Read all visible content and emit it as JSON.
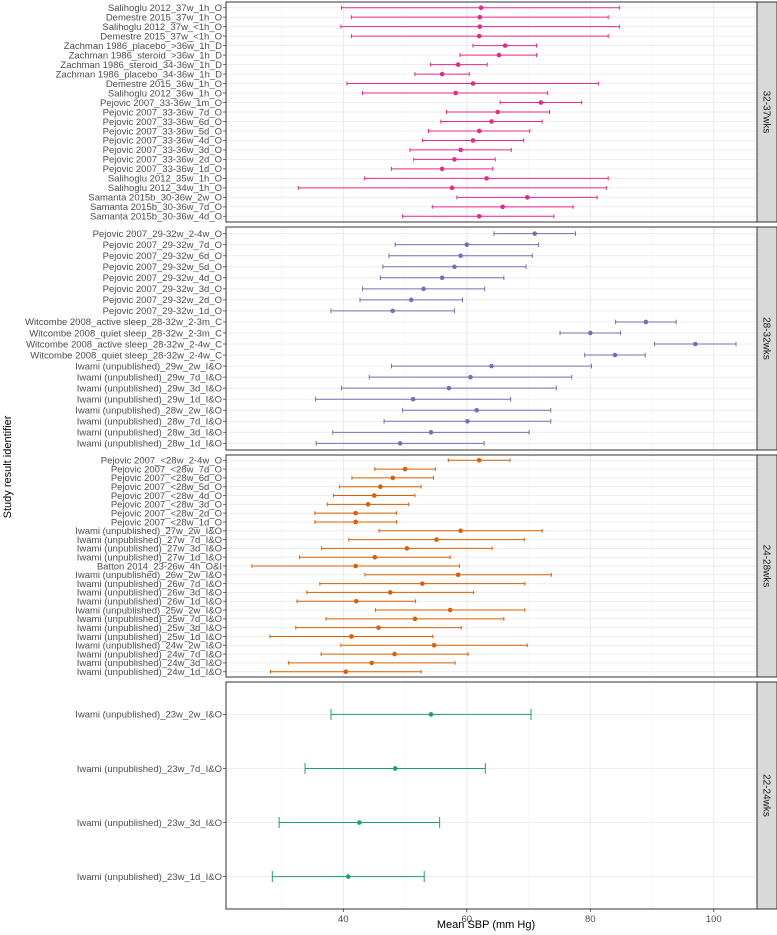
{
  "chart_data": {
    "type": "forest",
    "xlabel": "Mean SBP (mm Hg)",
    "ylabel": "Study result identifier",
    "xlim": [
      21,
      107
    ],
    "xticks": [
      40,
      60,
      80,
      100
    ],
    "colors": {
      "32-37wks": "#e7298a",
      "28-32wks": "#7570b3",
      "24-28wks": "#d95f02",
      "22-24wks": "#1b9e77"
    },
    "panels": [
      {
        "name": "32-37wks",
        "rows": [
          {
            "label": "Salihoglu 2012_37w_1h_O",
            "mean": 62.3,
            "lo": 39.7,
            "hi": 84.7
          },
          {
            "label": "Demestre 2015_37w_1h_O",
            "mean": 62.1,
            "lo": 41.3,
            "hi": 82.9
          },
          {
            "label": "Salihoglu 2012_37w_<1h_O",
            "mean": 62.1,
            "lo": 39.6,
            "hi": 84.7
          },
          {
            "label": "Demestre 2015_37w_<1h_O",
            "mean": 62.0,
            "lo": 41.3,
            "hi": 82.9
          },
          {
            "label": "Zachman 1986_placebo_>36w_1h_D",
            "mean": 66.2,
            "lo": 61.0,
            "hi": 71.3
          },
          {
            "label": "Zachman 1986_steroid_>36w_1h_D",
            "mean": 65.2,
            "lo": 58.9,
            "hi": 71.3
          },
          {
            "label": "Zachman 1986_steroid_34-36w_1h_D",
            "mean": 58.6,
            "lo": 54.1,
            "hi": 63.3
          },
          {
            "label": "Zachman 1986_placebo_34-36w_1h_D",
            "mean": 56.0,
            "lo": 51.6,
            "hi": 60.4
          },
          {
            "label": "Demestre 2015_36w_1h_O",
            "mean": 61.0,
            "lo": 40.6,
            "hi": 81.3
          },
          {
            "label": "Salihoglu 2012_36w_1h_O",
            "mean": 58.2,
            "lo": 43.1,
            "hi": 73.1
          },
          {
            "label": "Pejovic 2007_33-36w_1m_O",
            "mean": 72.0,
            "lo": 65.4,
            "hi": 78.6
          },
          {
            "label": "Pejovic 2007_33-36w_7d_O",
            "mean": 65.0,
            "lo": 56.7,
            "hi": 73.4
          },
          {
            "label": "Pejovic 2007_33-36w_6d_O",
            "mean": 64.0,
            "lo": 55.8,
            "hi": 72.2
          },
          {
            "label": "Pejovic 2007_33-36w_5d_O",
            "mean": 62.0,
            "lo": 53.8,
            "hi": 70.2
          },
          {
            "label": "Pejovic 2007_33-36w_4d_O",
            "mean": 61.0,
            "lo": 52.8,
            "hi": 69.2
          },
          {
            "label": "Pejovic 2007_33-36w_3d_O",
            "mean": 59.0,
            "lo": 50.8,
            "hi": 67.2
          },
          {
            "label": "Pejovic 2007_33-36w_2d_O",
            "mean": 58.0,
            "lo": 51.4,
            "hi": 64.6
          },
          {
            "label": "Pejovic 2007_33-36w_1d_O",
            "mean": 56.0,
            "lo": 47.8,
            "hi": 64.2
          },
          {
            "label": "Salihoglu 2012_35w_1h_O",
            "mean": 63.2,
            "lo": 43.4,
            "hi": 82.9
          },
          {
            "label": "Salihoglu 2012_34w_1h_O",
            "mean": 57.6,
            "lo": 32.7,
            "hi": 82.6
          },
          {
            "label": "Samanta 2015b_30-36w_2w_O",
            "mean": 69.8,
            "lo": 58.4,
            "hi": 81.1
          },
          {
            "label": "Samanta 2015b_30-36w_7d_O",
            "mean": 65.8,
            "lo": 54.4,
            "hi": 77.2
          },
          {
            "label": "Samanta 2015b_30-36w_4d_O",
            "mean": 62.0,
            "lo": 49.6,
            "hi": 74.1
          }
        ]
      },
      {
        "name": "28-32wks",
        "rows": [
          {
            "label": "Pejovic 2007_29-32w_2-4w_O",
            "mean": 71.0,
            "lo": 64.4,
            "hi": 77.6
          },
          {
            "label": "Pejovic 2007_29-32w_7d_O",
            "mean": 60.0,
            "lo": 48.4,
            "hi": 71.6
          },
          {
            "label": "Pejovic 2007_29-32w_6d_O",
            "mean": 59.0,
            "lo": 47.4,
            "hi": 70.6
          },
          {
            "label": "Pejovic 2007_29-32w_5d_O",
            "mean": 58.0,
            "lo": 46.4,
            "hi": 69.6
          },
          {
            "label": "Pejovic 2007_29-32w_4d_O",
            "mean": 56.0,
            "lo": 46.0,
            "hi": 66.0
          },
          {
            "label": "Pejovic 2007_29-32w_3d_O",
            "mean": 53.0,
            "lo": 43.1,
            "hi": 62.9
          },
          {
            "label": "Pejovic 2007_29-32w_2d_O",
            "mean": 51.0,
            "lo": 42.7,
            "hi": 59.3
          },
          {
            "label": "Pejovic 2007_29-32w_1d_O",
            "mean": 48.0,
            "lo": 38.0,
            "hi": 58.0
          },
          {
            "label": "Witcombe 2008_active sleep_28-32w_2-3m_C",
            "mean": 89.0,
            "lo": 84.1,
            "hi": 93.9
          },
          {
            "label": "Witcombe 2008_quiet sleep_28-32w_2-3m_C",
            "mean": 80.0,
            "lo": 75.1,
            "hi": 84.9
          },
          {
            "label": "Witcombe 2008_active sleep_28-32w_2-4w_C",
            "mean": 97.0,
            "lo": 90.4,
            "hi": 103.6
          },
          {
            "label": "Witcombe 2008_quiet sleep_28-32w_2-4w_C",
            "mean": 84.0,
            "lo": 79.1,
            "hi": 88.9
          },
          {
            "label": "Iwami (unpublished)_29w_2w_I&O",
            "mean": 64.0,
            "lo": 47.8,
            "hi": 80.2
          },
          {
            "label": "Iwami (unpublished)_29w_7d_I&O",
            "mean": 60.6,
            "lo": 44.2,
            "hi": 77.0
          },
          {
            "label": "Iwami (unpublished)_29w_3d_I&O",
            "mean": 57.1,
            "lo": 39.7,
            "hi": 74.5
          },
          {
            "label": "Iwami (unpublished)_29w_1d_I&O",
            "mean": 51.3,
            "lo": 35.5,
            "hi": 67.1
          },
          {
            "label": "Iwami (unpublished)_28w_2w_I&O",
            "mean": 61.6,
            "lo": 49.6,
            "hi": 73.6
          },
          {
            "label": "Iwami (unpublished)_28w_7d_I&O",
            "mean": 60.1,
            "lo": 46.6,
            "hi": 73.6
          },
          {
            "label": "Iwami (unpublished)_28w_3d_I&O",
            "mean": 54.2,
            "lo": 38.3,
            "hi": 70.1
          },
          {
            "label": "Iwami (unpublished)_28w_1d_I&O",
            "mean": 49.2,
            "lo": 35.6,
            "hi": 62.8
          }
        ]
      },
      {
        "name": "24-28wks",
        "rows": [
          {
            "label": "Pejovic 2007_<28w_2-4w_O",
            "mean": 62.0,
            "lo": 57.0,
            "hi": 67.0
          },
          {
            "label": "Pejovic 2007_<28w_7d_O",
            "mean": 50.0,
            "lo": 45.1,
            "hi": 54.9
          },
          {
            "label": "Pejovic 2007_<28w_6d_O",
            "mean": 48.0,
            "lo": 41.4,
            "hi": 54.6
          },
          {
            "label": "Pejovic 2007_<28w_5d_O",
            "mean": 46.0,
            "lo": 39.4,
            "hi": 52.6
          },
          {
            "label": "Pejovic 2007_<28w_4d_O",
            "mean": 45.0,
            "lo": 38.4,
            "hi": 51.6
          },
          {
            "label": "Pejovic 2007_<28w_3d_O",
            "mean": 44.0,
            "lo": 37.4,
            "hi": 50.6
          },
          {
            "label": "Pejovic 2007_<28w_2d_O",
            "mean": 42.0,
            "lo": 35.4,
            "hi": 48.6
          },
          {
            "label": "Pejovic 2007_<28w_1d_O",
            "mean": 42.0,
            "lo": 35.4,
            "hi": 48.6
          },
          {
            "label": "Iwami (unpublished)_27w_2w_I&O",
            "mean": 59.0,
            "lo": 45.8,
            "hi": 72.2
          },
          {
            "label": "Iwami (unpublished)_27w_7d_I&O",
            "mean": 55.1,
            "lo": 40.9,
            "hi": 69.3
          },
          {
            "label": "Iwami (unpublished)_27w_3d_I&O",
            "mean": 50.3,
            "lo": 36.5,
            "hi": 64.1
          },
          {
            "label": "Iwami (unpublished)_27w_1d_I&O",
            "mean": 45.1,
            "lo": 32.9,
            "hi": 57.3
          },
          {
            "label": "Batton 2014_23-26w_4h_O&I",
            "mean": 42.0,
            "lo": 25.2,
            "hi": 58.8
          },
          {
            "label": "Iwami (unpublished)_26w_2w_I&O",
            "mean": 58.6,
            "lo": 43.5,
            "hi": 73.7
          },
          {
            "label": "Iwami (unpublished)_26w_7d_I&O",
            "mean": 52.8,
            "lo": 36.2,
            "hi": 69.4
          },
          {
            "label": "Iwami (unpublished)_26w_3d_I&O",
            "mean": 47.6,
            "lo": 34.1,
            "hi": 61.1
          },
          {
            "label": "Iwami (unpublished)_26w_1d_I&O",
            "mean": 42.1,
            "lo": 32.5,
            "hi": 51.7
          },
          {
            "label": "Iwami (unpublished)_25w_2w_I&O",
            "mean": 57.3,
            "lo": 45.2,
            "hi": 69.4
          },
          {
            "label": "Iwami (unpublished)_25w_7d_I&O",
            "mean": 51.6,
            "lo": 37.2,
            "hi": 66.0
          },
          {
            "label": "Iwami (unpublished)_25w_3d_I&O",
            "mean": 45.7,
            "lo": 32.3,
            "hi": 59.1
          },
          {
            "label": "Iwami (unpublished)_25w_1d_I&O",
            "mean": 41.3,
            "lo": 28.1,
            "hi": 54.5
          },
          {
            "label": "Iwami (unpublished)_24w_2w_I&O",
            "mean": 54.7,
            "lo": 39.6,
            "hi": 69.8
          },
          {
            "label": "Iwami (unpublished)_24w_7d_I&O",
            "mean": 48.3,
            "lo": 36.4,
            "hi": 60.2
          },
          {
            "label": "Iwami (unpublished)_24w_3d_I&O",
            "mean": 44.6,
            "lo": 31.1,
            "hi": 58.1
          },
          {
            "label": "Iwami (unpublished)_24w_1d_I&O",
            "mean": 40.4,
            "lo": 28.2,
            "hi": 52.6
          }
        ]
      },
      {
        "name": "22-24wks",
        "rows": [
          {
            "label": "Iwami (unpublished)_23w_2w_I&O",
            "mean": 54.2,
            "lo": 38.0,
            "hi": 70.4
          },
          {
            "label": "Iwami (unpublished)_23w_7d_I&O",
            "mean": 48.4,
            "lo": 33.8,
            "hi": 63.0
          },
          {
            "label": "Iwami (unpublished)_23w_3d_I&O",
            "mean": 42.6,
            "lo": 29.6,
            "hi": 55.6
          },
          {
            "label": "Iwami (unpublished)_23w_1d_I&O",
            "mean": 40.8,
            "lo": 28.5,
            "hi": 53.1
          }
        ]
      }
    ]
  }
}
